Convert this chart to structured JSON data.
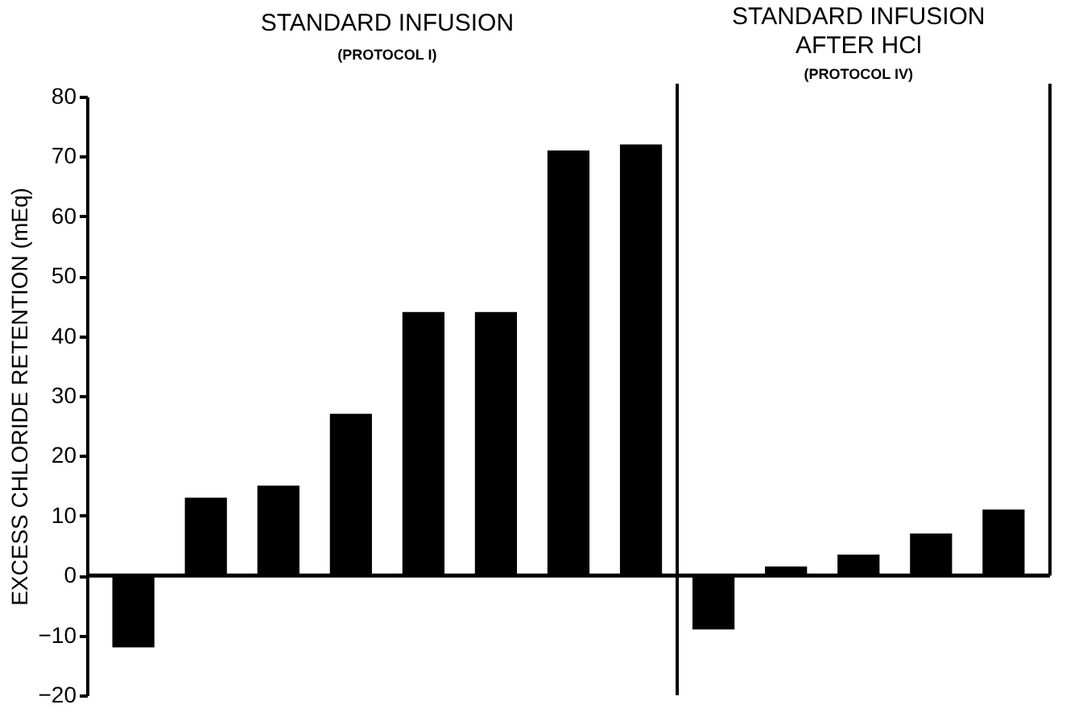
{
  "chart_data": {
    "type": "bar",
    "ylabel": "EXCESS CHLORIDE RETENTION (mEq)",
    "annotations": [
      "STANDARD INFUSION",
      "(PROTOCOL I)",
      "STANDARD INFUSION",
      "AFTER HCl",
      "(PROTOCOL IV)"
    ],
    "categories": [
      null,
      null,
      null,
      null,
      null,
      null,
      null,
      null,
      null,
      null,
      null,
      null,
      null
    ],
    "series": [
      {
        "color": "#000000",
        "values": [
          -12,
          13,
          15,
          27,
          44,
          44,
          71,
          72,
          -9,
          1.5,
          3.5,
          7,
          11
        ]
      }
    ],
    "ylim": [
      -20,
      80
    ],
    "yticks": [
      -20,
      -10,
      0,
      10,
      20,
      30,
      40,
      50,
      60,
      70,
      80
    ],
    "grid": false,
    "legend": false,
    "ref_lines": [
      {
        "axis": "y",
        "value": 0,
        "color": "#000000"
      }
    ]
  }
}
